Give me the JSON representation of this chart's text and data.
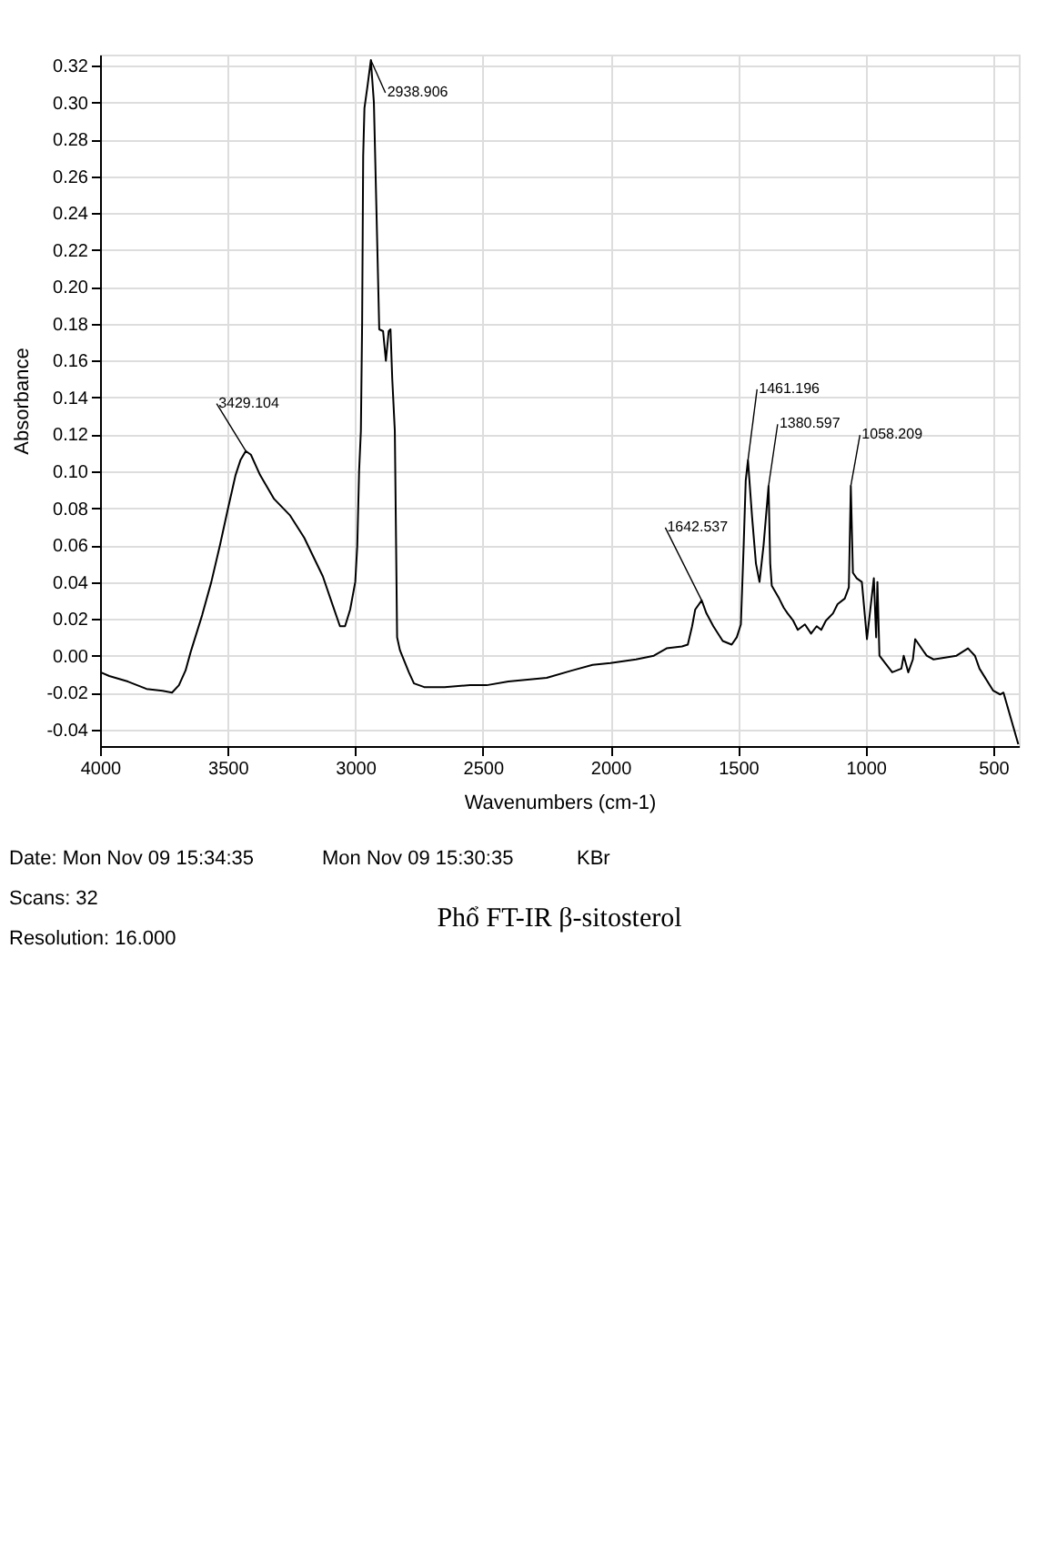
{
  "chart_data": {
    "type": "line",
    "title": "Phổ FT-IR β-sitosterol",
    "xlabel": "Wavenumbers (cm-1)",
    "ylabel": "Absorbance",
    "color": "#000000",
    "grid": true,
    "xlim": [
      4000,
      400
    ],
    "ylim": [
      -0.049,
      0.326
    ],
    "xticks": [
      4000,
      3500,
      3000,
      2500,
      2000,
      1500,
      1000,
      500
    ],
    "yticks": [
      -0.04,
      -0.02,
      {
        "value": 0,
        "label": "0.00"
      },
      0.02,
      0.04,
      0.06,
      0.08,
      {
        "value": 0.1,
        "label": "0.10"
      },
      0.12,
      0.14,
      0.16,
      0.18,
      {
        "value": 0.2,
        "label": "0.20"
      },
      0.22,
      0.24,
      0.26,
      0.28,
      {
        "value": 0.3,
        "label": "0.30"
      },
      0.32
    ],
    "x": [
      3998,
      3964,
      3891,
      3818,
      3755,
      3718,
      3691,
      3665,
      3645,
      3600,
      3564,
      3530,
      3500,
      3469,
      3450,
      3429.104,
      3409,
      3373,
      3318,
      3255,
      3200,
      3127,
      3090,
      3060,
      3040,
      3020,
      3000,
      2992,
      2985,
      2978,
      2973,
      2969,
      2964,
      2951,
      2938.906,
      2927,
      2915,
      2906,
      2891,
      2880,
      2869,
      2862,
      2855,
      2845,
      2840,
      2836,
      2825,
      2790,
      2770,
      2730,
      2650,
      2550,
      2485,
      2400,
      2250,
      2150,
      2070,
      2000,
      1900,
      1830,
      1780,
      1720,
      1697,
      1680,
      1668,
      1642.537,
      1624,
      1597,
      1560,
      1525,
      1505,
      1489,
      1478,
      1470,
      1461.196,
      1445,
      1430,
      1416,
      1400,
      1380.597,
      1374,
      1368,
      1339,
      1321,
      1306,
      1284,
      1266,
      1238,
      1214,
      1192,
      1174,
      1156,
      1128,
      1110,
      1082,
      1066,
      1058.209,
      1050,
      1035,
      1015,
      995,
      968,
      959,
      954,
      946,
      896,
      860,
      851,
      833,
      815,
      806,
      761,
      734,
      644,
      599,
      572,
      554,
      500,
      473,
      460,
      402
    ],
    "values": [
      -0.009,
      -0.011,
      -0.014,
      -0.018,
      -0.019,
      -0.02,
      -0.016,
      -0.008,
      0.002,
      0.022,
      0.04,
      0.06,
      0.079,
      0.098,
      0.106,
      0.111,
      0.109,
      0.098,
      0.085,
      0.076,
      0.064,
      0.043,
      0.028,
      0.016,
      0.016,
      0.025,
      0.04,
      0.06,
      0.1,
      0.122,
      0.181,
      0.271,
      0.297,
      0.31,
      0.323,
      0.3,
      0.23,
      0.177,
      0.176,
      0.16,
      0.176,
      0.177,
      0.15,
      0.122,
      0.06,
      0.01,
      0.003,
      -0.009,
      -0.015,
      -0.017,
      -0.017,
      -0.016,
      -0.016,
      -0.014,
      -0.012,
      -0.008,
      -0.005,
      -0.004,
      -0.002,
      0.0,
      0.004,
      0.005,
      0.006,
      0.016,
      0.025,
      0.03,
      0.023,
      0.016,
      0.008,
      0.006,
      0.01,
      0.017,
      0.06,
      0.095,
      0.106,
      0.075,
      0.05,
      0.04,
      0.06,
      0.092,
      0.05,
      0.038,
      0.031,
      0.026,
      0.023,
      0.019,
      0.014,
      0.017,
      0.012,
      0.016,
      0.014,
      0.019,
      0.023,
      0.028,
      0.031,
      0.037,
      0.092,
      0.045,
      0.042,
      0.04,
      0.009,
      0.042,
      0.01,
      0.04,
      0.0,
      -0.009,
      -0.007,
      0.0,
      -0.009,
      -0.002,
      0.009,
      0.0,
      -0.002,
      0.0,
      0.004,
      0.0,
      -0.007,
      -0.019,
      -0.021,
      -0.02,
      -0.048
    ],
    "annotations": [
      {
        "text": "3429.104",
        "x": 3429.104,
        "y": 0.111
      },
      {
        "text": "2938.906",
        "x": 2938.906,
        "y": 0.323
      },
      {
        "text": "1642.537",
        "x": 1642.537,
        "y": 0.03
      },
      {
        "text": "1461.196",
        "x": 1461.196,
        "y": 0.106
      },
      {
        "text": "1380.597",
        "x": 1380.597,
        "y": 0.092
      },
      {
        "text": "1058.209",
        "x": 1058.209,
        "y": 0.092
      },
      "Date: Mon Nov 09 15:34:35",
      "Scans: 32",
      "Resolution: 16.000",
      "Mon Nov 09 15:30:35",
      "KBr"
    ]
  }
}
